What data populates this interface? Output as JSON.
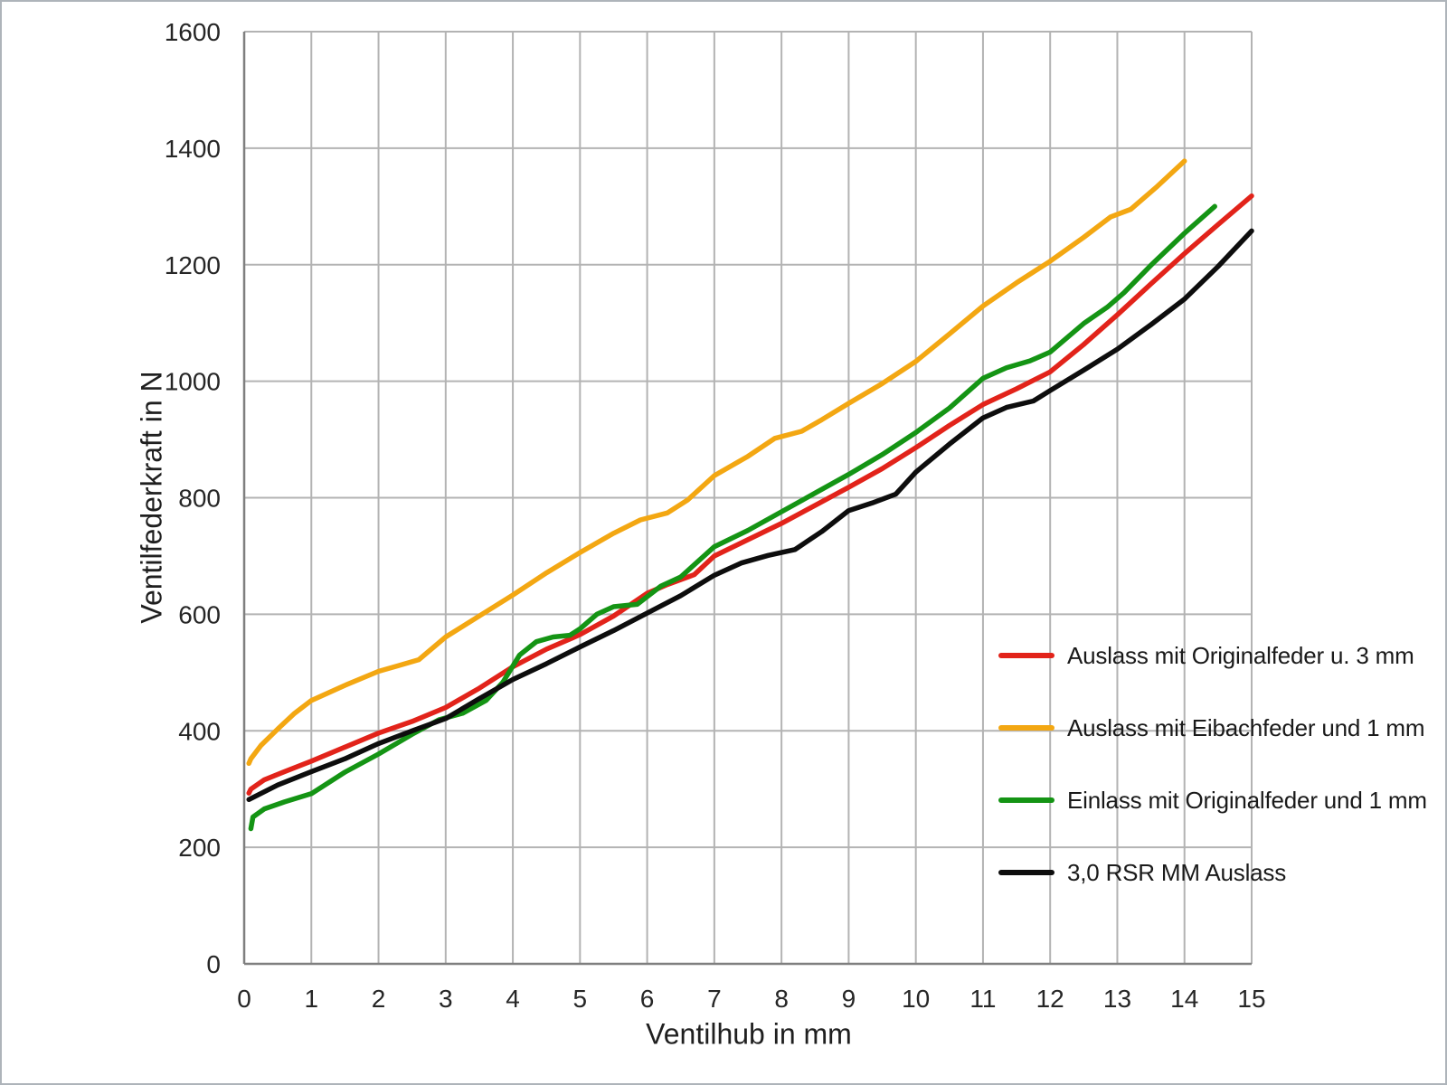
{
  "chart_data": {
    "type": "line",
    "title": "",
    "xlabel": "Ventilhub in mm",
    "ylabel": "Ventilfederkraft in N",
    "xlim": [
      0,
      15
    ],
    "ylim": [
      0,
      1600
    ],
    "x_ticks": [
      0,
      1,
      2,
      3,
      4,
      5,
      6,
      7,
      8,
      9,
      10,
      11,
      12,
      13,
      14,
      15
    ],
    "y_ticks": [
      0,
      200,
      400,
      600,
      800,
      1000,
      1200,
      1400,
      1600
    ],
    "grid": true,
    "legend_position": "center-right",
    "colors": {
      "gridline": "#b3b3b3",
      "axis_line": "#7f7f7f",
      "tick_label": "#262626",
      "background": "#ffffff"
    },
    "series": [
      {
        "id": "auslass-originalfeder-3mm",
        "name": "Auslass mit Originalfeder u. 3 mm",
        "color": "#e2231a",
        "points": [
          [
            0.07,
            293
          ],
          [
            0.1,
            300
          ],
          [
            0.3,
            316
          ],
          [
            0.6,
            330
          ],
          [
            1,
            348
          ],
          [
            1.5,
            372
          ],
          [
            2,
            396
          ],
          [
            2.5,
            416
          ],
          [
            3,
            440
          ],
          [
            3.5,
            473
          ],
          [
            4,
            510
          ],
          [
            4.5,
            540
          ],
          [
            5,
            565
          ],
          [
            5.5,
            597
          ],
          [
            6,
            636
          ],
          [
            6.3,
            651
          ],
          [
            6.7,
            668
          ],
          [
            7,
            700
          ],
          [
            7.5,
            728
          ],
          [
            8,
            756
          ],
          [
            8.5,
            787
          ],
          [
            9,
            818
          ],
          [
            9.5,
            850
          ],
          [
            10,
            886
          ],
          [
            10.5,
            924
          ],
          [
            11,
            960
          ],
          [
            11.5,
            987
          ],
          [
            12,
            1016
          ],
          [
            12.5,
            1063
          ],
          [
            13,
            1114
          ],
          [
            13.5,
            1167
          ],
          [
            14,
            1219
          ],
          [
            14.5,
            1269
          ],
          [
            15,
            1318
          ]
        ]
      },
      {
        "id": "auslass-eibachfeder-1mm",
        "name": "Auslass mit Eibachfeder und 1 mm",
        "color": "#f3a712",
        "points": [
          [
            0.07,
            344
          ],
          [
            0.1,
            352
          ],
          [
            0.25,
            375
          ],
          [
            0.5,
            403
          ],
          [
            0.75,
            430
          ],
          [
            1,
            452
          ],
          [
            1.5,
            478
          ],
          [
            2,
            502
          ],
          [
            2.3,
            512
          ],
          [
            2.6,
            522
          ],
          [
            3,
            561
          ],
          [
            3.5,
            597
          ],
          [
            4,
            633
          ],
          [
            4.5,
            671
          ],
          [
            5,
            706
          ],
          [
            5.5,
            739
          ],
          [
            5.9,
            762
          ],
          [
            6.3,
            774
          ],
          [
            6.6,
            796
          ],
          [
            7,
            838
          ],
          [
            7.5,
            871
          ],
          [
            7.9,
            902
          ],
          [
            8.3,
            914
          ],
          [
            8.6,
            934
          ],
          [
            9,
            962
          ],
          [
            9.5,
            996
          ],
          [
            10,
            1034
          ],
          [
            10.5,
            1081
          ],
          [
            11,
            1129
          ],
          [
            11.5,
            1169
          ],
          [
            12,
            1206
          ],
          [
            12.5,
            1247
          ],
          [
            12.9,
            1282
          ],
          [
            13.2,
            1295
          ],
          [
            13.6,
            1335
          ],
          [
            14,
            1378
          ]
        ]
      },
      {
        "id": "einlass-originalfeder-1mm",
        "name": "Einlass mit Originalfeder und 1 mm",
        "color": "#149414",
        "points": [
          [
            0.1,
            232
          ],
          [
            0.13,
            252
          ],
          [
            0.3,
            266
          ],
          [
            0.6,
            278
          ],
          [
            1,
            292
          ],
          [
            1.5,
            329
          ],
          [
            2,
            360
          ],
          [
            2.5,
            394
          ],
          [
            2.9,
            419
          ],
          [
            3.25,
            430
          ],
          [
            3.6,
            452
          ],
          [
            3.85,
            483
          ],
          [
            4.1,
            530
          ],
          [
            4.35,
            553
          ],
          [
            4.6,
            561
          ],
          [
            4.85,
            564
          ],
          [
            5,
            575
          ],
          [
            5.25,
            600
          ],
          [
            5.5,
            613
          ],
          [
            5.85,
            617
          ],
          [
            6.2,
            648
          ],
          [
            6.5,
            664
          ],
          [
            7,
            716
          ],
          [
            7.5,
            744
          ],
          [
            8,
            776
          ],
          [
            8.5,
            808
          ],
          [
            9,
            840
          ],
          [
            9.5,
            874
          ],
          [
            10,
            912
          ],
          [
            10.5,
            954
          ],
          [
            11,
            1005
          ],
          [
            11.35,
            1023
          ],
          [
            11.7,
            1035
          ],
          [
            12,
            1050
          ],
          [
            12.5,
            1099
          ],
          [
            12.85,
            1127
          ],
          [
            13.1,
            1152
          ],
          [
            13.5,
            1199
          ],
          [
            14,
            1254
          ],
          [
            14.45,
            1300
          ]
        ]
      },
      {
        "id": "rsr-mm-auslass",
        "name": "3,0 RSR MM Auslass",
        "color": "#0d0d0d",
        "points": [
          [
            0.07,
            282
          ],
          [
            0.5,
            307
          ],
          [
            1,
            330
          ],
          [
            1.5,
            352
          ],
          [
            2,
            378
          ],
          [
            2.5,
            400
          ],
          [
            3,
            421
          ],
          [
            3.5,
            455
          ],
          [
            4,
            488
          ],
          [
            4.5,
            515
          ],
          [
            5,
            544
          ],
          [
            5.5,
            572
          ],
          [
            6,
            602
          ],
          [
            6.5,
            632
          ],
          [
            7,
            667
          ],
          [
            7.4,
            688
          ],
          [
            7.8,
            701
          ],
          [
            8.2,
            711
          ],
          [
            8.6,
            742
          ],
          [
            9,
            778
          ],
          [
            9.35,
            791
          ],
          [
            9.7,
            806
          ],
          [
            10,
            844
          ],
          [
            10.5,
            892
          ],
          [
            11,
            937
          ],
          [
            11.35,
            955
          ],
          [
            11.75,
            966
          ],
          [
            12,
            984
          ],
          [
            12.5,
            1019
          ],
          [
            13,
            1055
          ],
          [
            13.5,
            1097
          ],
          [
            14,
            1141
          ],
          [
            14.5,
            1197
          ],
          [
            15,
            1258
          ]
        ]
      }
    ]
  }
}
